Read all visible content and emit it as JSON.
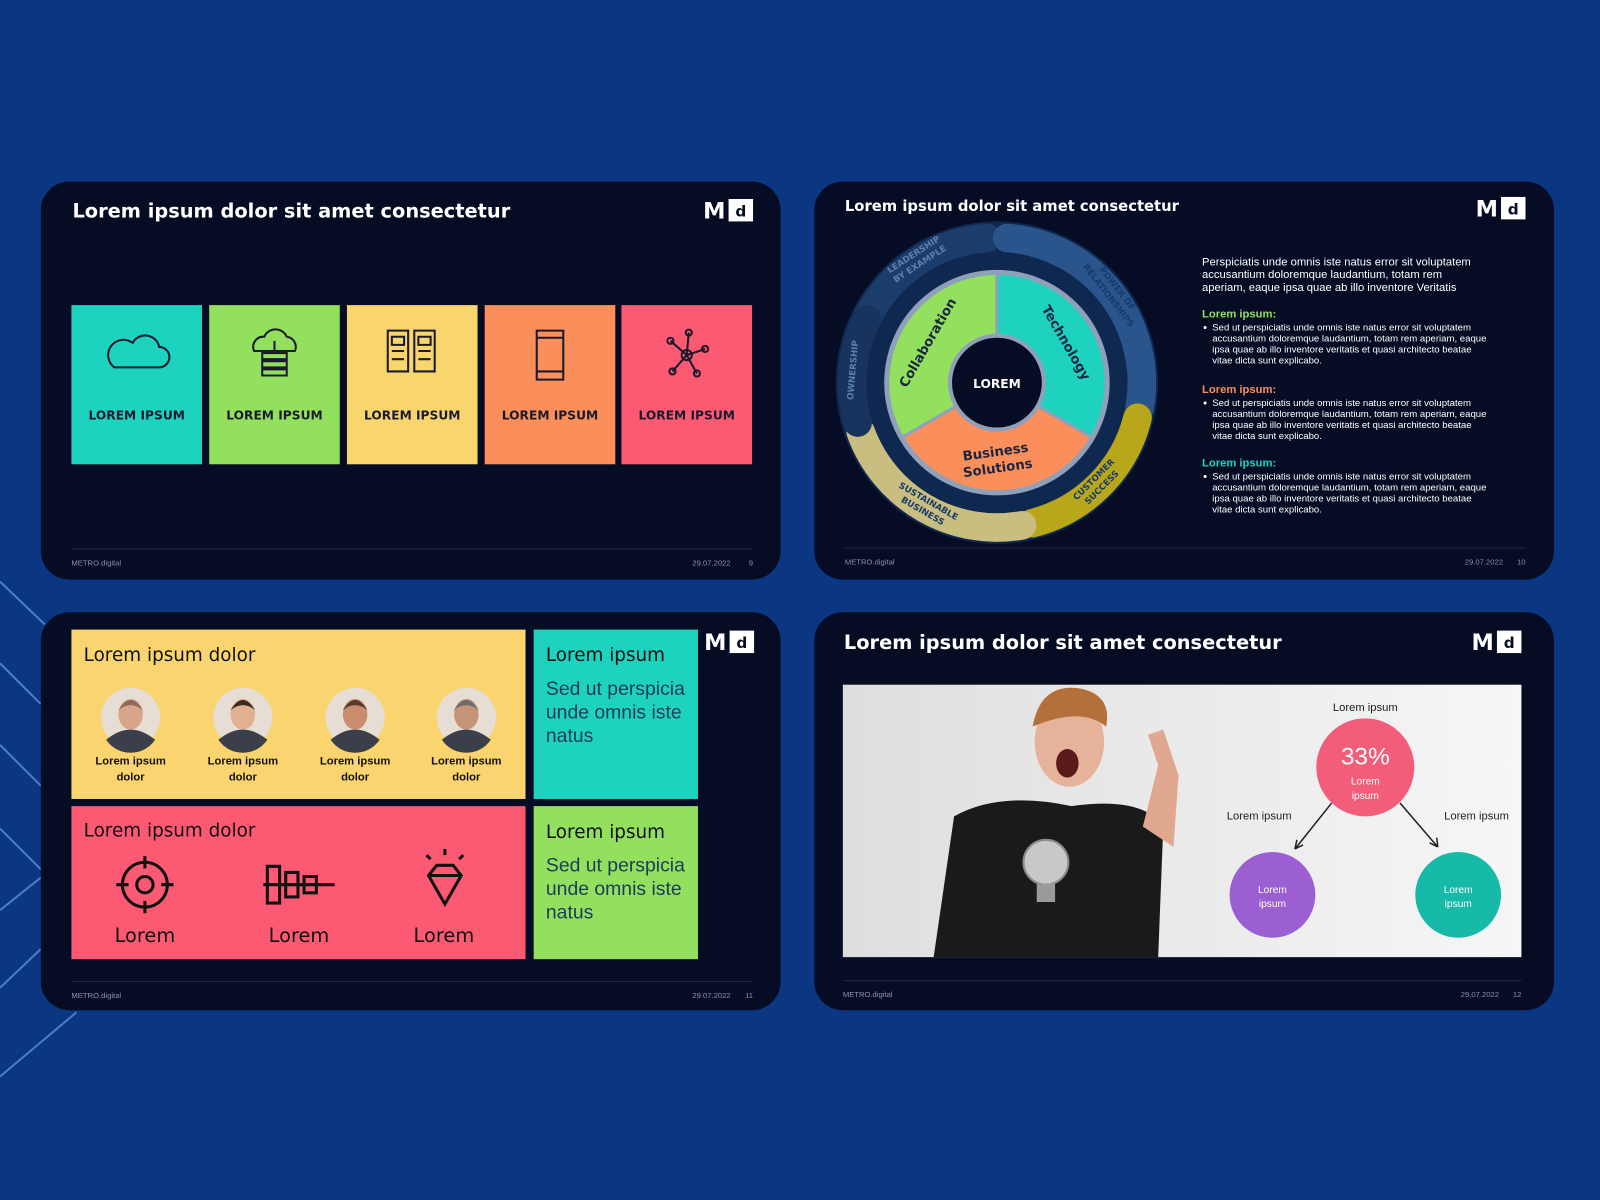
{
  "brand": {
    "mark": "M",
    "letter": "d",
    "footer": "METRO.digital"
  },
  "slides": [
    {
      "title": "Lorem ipsum dolor sit amet consectetur",
      "tiles": [
        "LOREM IPSUM",
        "LOREM IPSUM",
        "LOREM IPSUM",
        "LOREM IPSUM",
        "LOREM IPSUM"
      ],
      "date": "29.07.2022",
      "page": "9"
    },
    {
      "title": "Lorem ipsum dolor sit amet consectetur",
      "wheel": {
        "center": "LOREM",
        "inner": [
          [
            "Collaboration"
          ],
          [
            "Technology"
          ],
          [
            "Business",
            "Solutions"
          ]
        ],
        "outer": [
          [
            "LEADERSHIP",
            "BY EXAMPLE"
          ],
          [
            "POWER OF",
            "RELATIONSHIPS"
          ],
          [
            "CUSTOMER",
            "SUCCESS"
          ],
          [
            "SUSTAINABLE",
            "BUSINESS"
          ],
          [
            "OWNERSHIP"
          ]
        ]
      },
      "intro": [
        "Perspiciatis unde omnis iste natus error sit voluptatem",
        "accusantium doloremque laudantium, totam rem",
        "aperiam, eaque ipsa quae ab illo inventore Veritatis"
      ],
      "sections": [
        {
          "heading": "Lorem ipsum:",
          "lines": [
            "Sed ut perspiciatis unde omnis iste natus error sit voluptatem",
            "accusantium doloremque laudantium, totam rem aperiam, eaque",
            "ipsa quae ab illo inventore veritatis et quasi architecto beatae",
            "vitae dicta sunt explicabo."
          ]
        },
        {
          "heading": "Lorem ipsum:",
          "lines": [
            "Sed ut perspiciatis unde omnis iste natus error sit voluptatem",
            "accusantium doloremque laudantium, totam rem aperiam, eaque",
            "ipsa quae ab illo inventore veritatis et quasi architecto beatae",
            "vitae dicta sunt explicabo."
          ]
        },
        {
          "heading": "Lorem ipsum:",
          "lines": [
            "Sed ut perspiciatis unde omnis iste natus error sit voluptatem",
            "accusantium doloremque laudantium, totam rem aperiam, eaque",
            "ipsa quae ab illo inventore veritatis et quasi architecto beatae",
            "vitae dicta sunt explicabo."
          ]
        }
      ],
      "date": "29.07.2022",
      "page": "10"
    },
    {
      "panels": [
        {
          "title": "Lorem ipsum dolor",
          "people": [
            [
              "Lorem ipsum",
              "dolor"
            ],
            [
              "Lorem ipsum",
              "dolor"
            ],
            [
              "Lorem ipsum",
              "dolor"
            ],
            [
              "Lorem ipsum",
              "dolor"
            ]
          ]
        },
        {
          "title": "Lorem ipsum dolor",
          "items": [
            "Lorem",
            "Lorem",
            "Lorem"
          ]
        }
      ],
      "boxes": [
        {
          "title": "Lorem ipsum",
          "body": [
            "Sed ut perspicia",
            "unde omnis iste",
            "natus"
          ]
        },
        {
          "title": "Lorem ipsum",
          "body": [
            "Sed ut perspicia",
            "unde omnis iste",
            "natus"
          ]
        }
      ],
      "date": "29.07.2022",
      "page": "11"
    },
    {
      "title": "Lorem ipsum dolor sit amet consectetur",
      "diagram": {
        "top": "Lorem ipsum",
        "percent": "33%",
        "inside": [
          "Lorem",
          "ipsum"
        ],
        "left": "Lorem ipsum",
        "right": "Lorem ipsum",
        "circles": [
          [
            "Lorem",
            "ipsum"
          ],
          [
            "Lorem",
            "ipsum"
          ]
        ]
      },
      "date": "29.07.2022",
      "page": "12"
    }
  ]
}
